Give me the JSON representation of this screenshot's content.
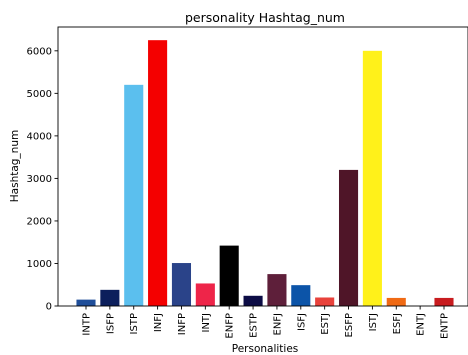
{
  "chart_data": {
    "type": "bar",
    "title": "personality Hashtag_num",
    "xlabel": "Personalities",
    "ylabel": "Hashtag_num",
    "ylim": [
      0,
      6560
    ],
    "yticks": [
      0,
      1000,
      2000,
      3000,
      4000,
      5000,
      6000
    ],
    "grid": false,
    "legend": "none",
    "categories": [
      "INTP",
      "ISFP",
      "ISTP",
      "INFJ",
      "INFP",
      "INTJ",
      "ENFP",
      "ESTP",
      "ENFJ",
      "ISFJ",
      "ESTJ",
      "ESFP",
      "ISTJ",
      "ESFJ",
      "ENTJ",
      "ENTP"
    ],
    "values": [
      150,
      380,
      5200,
      6250,
      1010,
      530,
      1420,
      240,
      750,
      490,
      200,
      3200,
      6000,
      190,
      0,
      190
    ],
    "colors": [
      "#1f4e99",
      "#0c1f5c",
      "#5bbfee",
      "#f40000",
      "#2a4389",
      "#ee2549",
      "#000000",
      "#0c0c45",
      "#5e1f3a",
      "#0c54a8",
      "#e8423b",
      "#4f1528",
      "#fff11a",
      "#f06a14",
      "#ffffff",
      "#c81c1f"
    ]
  }
}
